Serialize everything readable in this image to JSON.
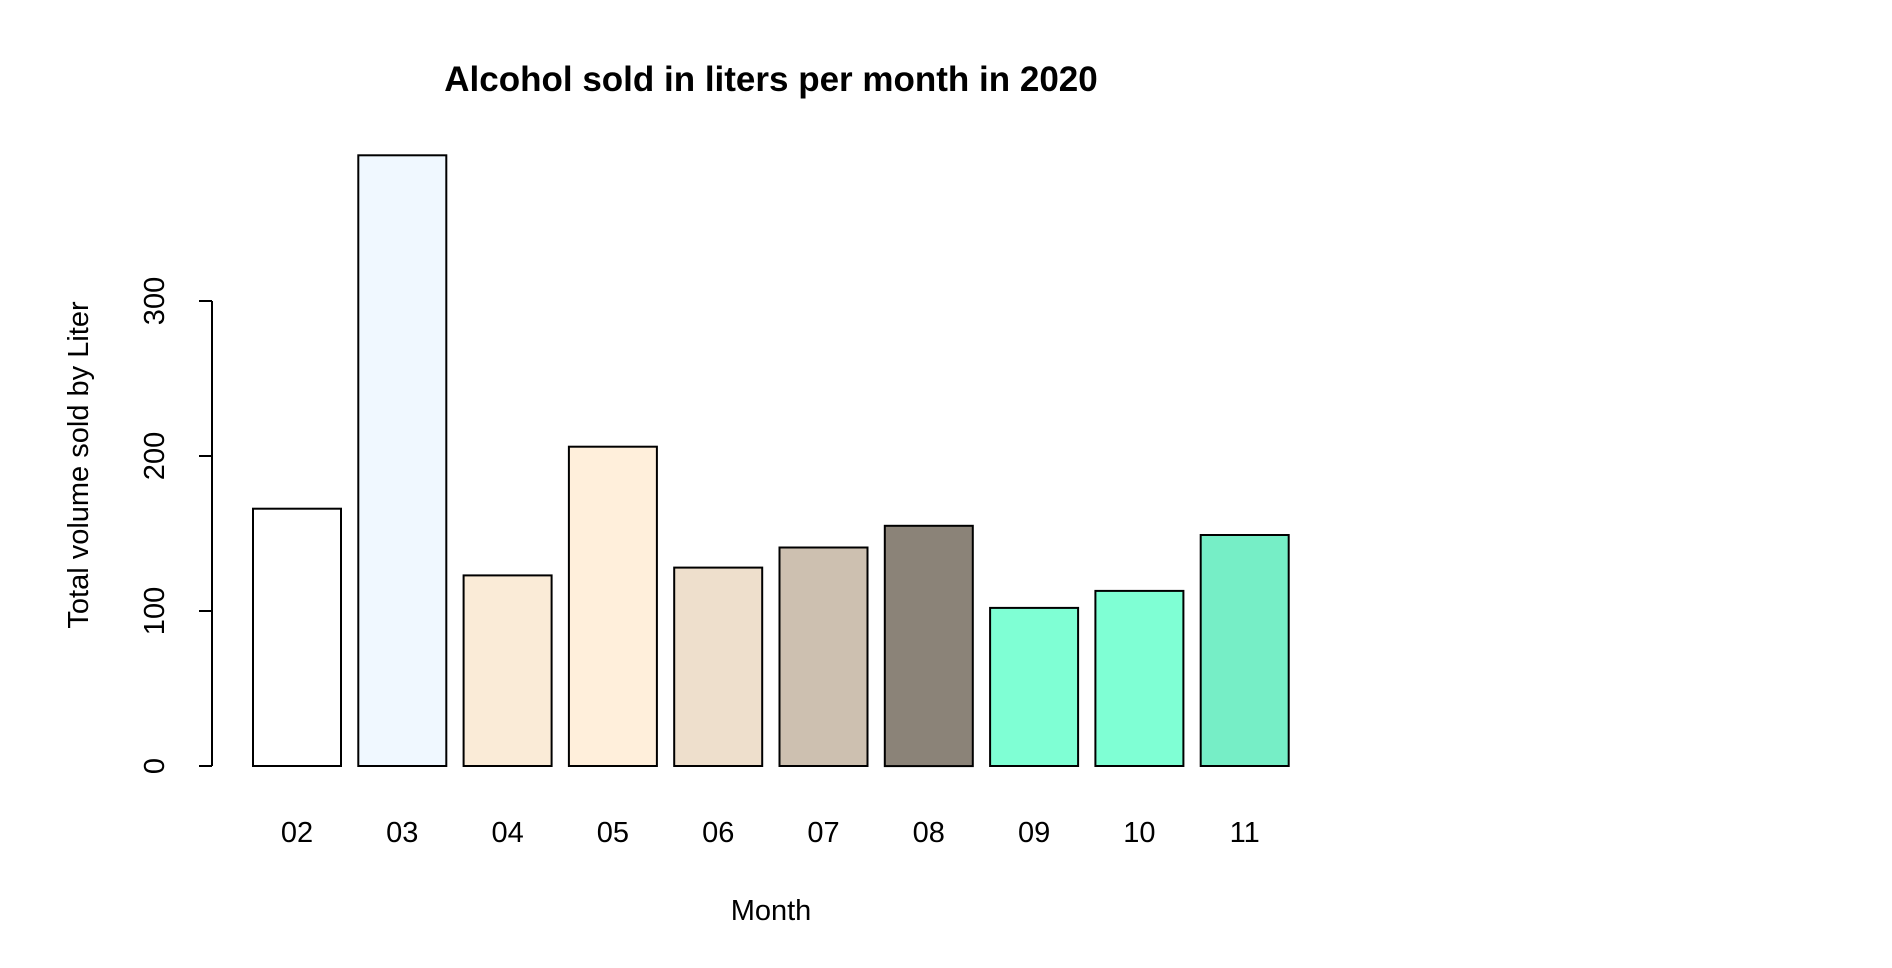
{
  "chart_data": {
    "type": "bar",
    "title": "Alcohol sold in liters per month in 2020",
    "xlabel": "Month",
    "ylabel": "Total volume sold by Liter",
    "categories": [
      "02",
      "03",
      "04",
      "05",
      "06",
      "07",
      "08",
      "09",
      "10",
      "11"
    ],
    "values": [
      166,
      394,
      123,
      206,
      128,
      141,
      155,
      102,
      113,
      149
    ],
    "colors": [
      "#FFFFFF",
      "#F0F8FF",
      "#FAEBD7",
      "#FFEFDB",
      "#EEDFCC",
      "#CDC0B0",
      "#8B8378",
      "#7FFFD4",
      "#7FFFD4",
      "#76EEC6"
    ],
    "yticks": [
      0,
      100,
      200,
      300
    ],
    "ylim": [
      0,
      394
    ],
    "grid": false,
    "legend": "none"
  }
}
